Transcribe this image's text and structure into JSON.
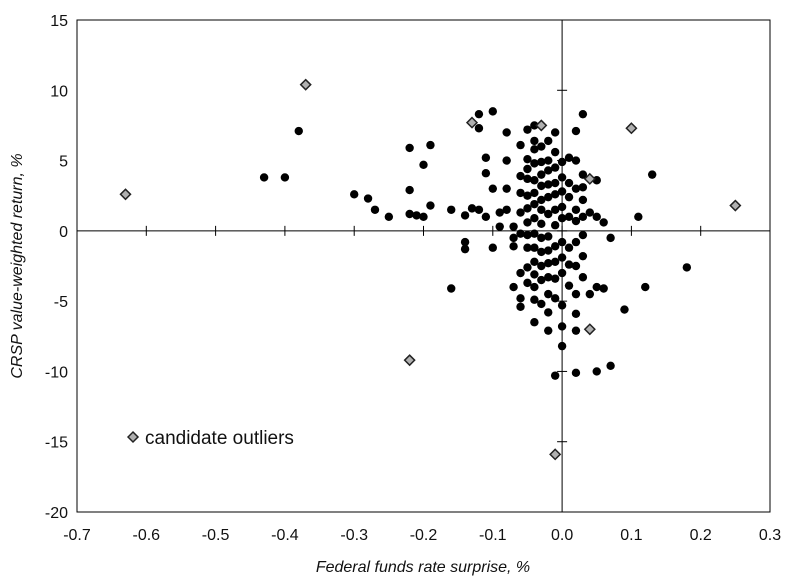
{
  "chart_data": {
    "type": "scatter",
    "xlabel": "Federal funds rate surprise, %",
    "ylabel": "CRSP value-weighted return, %",
    "xlim": [
      -0.7,
      0.3
    ],
    "ylim": [
      -20,
      15
    ],
    "xticks": [
      -0.7,
      -0.6,
      -0.5,
      -0.4,
      -0.3,
      -0.2,
      -0.1,
      0.0,
      0.1,
      0.2,
      0.3
    ],
    "xtick_labels": [
      "-0.7",
      "-0.6",
      "-0.5",
      "-0.4",
      "-0.3",
      "-0.2",
      "-0.1",
      "0.0",
      "0.1",
      "0.2",
      "0.3"
    ],
    "yticks": [
      -20,
      -15,
      -10,
      -5,
      0,
      5,
      10,
      15
    ],
    "ytick_labels": [
      "-20",
      "-15",
      "-10",
      "-5",
      "0",
      "5",
      "10",
      "15"
    ],
    "grid": false,
    "legend_position": "bottom-left",
    "series": [
      {
        "marker": "circle",
        "color": "#000000",
        "points": [
          [
            -0.43,
            3.8
          ],
          [
            -0.4,
            3.8
          ],
          [
            -0.38,
            7.1
          ],
          [
            -0.3,
            2.6
          ],
          [
            -0.28,
            2.3
          ],
          [
            -0.27,
            1.5
          ],
          [
            -0.25,
            1.0
          ],
          [
            -0.22,
            5.9
          ],
          [
            -0.22,
            2.9
          ],
          [
            -0.22,
            1.2
          ],
          [
            -0.21,
            1.1
          ],
          [
            -0.2,
            4.7
          ],
          [
            -0.2,
            1.0
          ],
          [
            -0.19,
            6.1
          ],
          [
            -0.19,
            1.8
          ],
          [
            -0.16,
            1.5
          ],
          [
            -0.16,
            -4.1
          ],
          [
            -0.14,
            -0.8
          ],
          [
            -0.14,
            -1.3
          ],
          [
            -0.14,
            1.1
          ],
          [
            -0.13,
            1.6
          ],
          [
            -0.12,
            8.3
          ],
          [
            -0.12,
            7.3
          ],
          [
            -0.12,
            1.5
          ],
          [
            -0.11,
            5.2
          ],
          [
            -0.11,
            4.1
          ],
          [
            -0.11,
            1.0
          ],
          [
            -0.1,
            8.5
          ],
          [
            -0.1,
            -1.2
          ],
          [
            -0.1,
            3.0
          ],
          [
            -0.09,
            1.3
          ],
          [
            -0.09,
            0.3
          ],
          [
            -0.08,
            7.0
          ],
          [
            -0.08,
            5.0
          ],
          [
            -0.08,
            3.0
          ],
          [
            -0.08,
            1.5
          ],
          [
            -0.07,
            0.3
          ],
          [
            -0.07,
            -0.5
          ],
          [
            -0.07,
            -1.1
          ],
          [
            -0.07,
            -4.0
          ],
          [
            -0.06,
            6.1
          ],
          [
            -0.06,
            3.9
          ],
          [
            -0.06,
            2.7
          ],
          [
            -0.06,
            1.3
          ],
          [
            -0.06,
            -0.2
          ],
          [
            -0.06,
            -3.0
          ],
          [
            -0.06,
            -4.8
          ],
          [
            -0.06,
            -5.4
          ],
          [
            -0.05,
            7.2
          ],
          [
            -0.05,
            5.1
          ],
          [
            -0.05,
            4.4
          ],
          [
            -0.05,
            3.7
          ],
          [
            -0.05,
            2.5
          ],
          [
            -0.05,
            1.6
          ],
          [
            -0.05,
            0.6
          ],
          [
            -0.05,
            -0.3
          ],
          [
            -0.05,
            -1.2
          ],
          [
            -0.05,
            -2.6
          ],
          [
            -0.05,
            -3.7
          ],
          [
            -0.04,
            7.5
          ],
          [
            -0.04,
            6.4
          ],
          [
            -0.04,
            5.8
          ],
          [
            -0.04,
            4.8
          ],
          [
            -0.04,
            3.6
          ],
          [
            -0.04,
            2.7
          ],
          [
            -0.04,
            1.9
          ],
          [
            -0.04,
            0.9
          ],
          [
            -0.04,
            -0.2
          ],
          [
            -0.04,
            -1.2
          ],
          [
            -0.04,
            -2.2
          ],
          [
            -0.04,
            -3.1
          ],
          [
            -0.04,
            -4.0
          ],
          [
            -0.04,
            -4.9
          ],
          [
            -0.04,
            -6.5
          ],
          [
            -0.03,
            6.0
          ],
          [
            -0.03,
            4.9
          ],
          [
            -0.03,
            4.0
          ],
          [
            -0.03,
            3.2
          ],
          [
            -0.03,
            2.2
          ],
          [
            -0.03,
            1.5
          ],
          [
            -0.03,
            0.5
          ],
          [
            -0.03,
            -0.5
          ],
          [
            -0.03,
            -1.5
          ],
          [
            -0.03,
            -2.5
          ],
          [
            -0.03,
            -3.5
          ],
          [
            -0.03,
            -5.2
          ],
          [
            -0.02,
            6.4
          ],
          [
            -0.02,
            5.0
          ],
          [
            -0.02,
            4.3
          ],
          [
            -0.02,
            3.3
          ],
          [
            -0.02,
            2.4
          ],
          [
            -0.02,
            1.2
          ],
          [
            -0.02,
            -0.4
          ],
          [
            -0.02,
            -1.4
          ],
          [
            -0.02,
            -2.3
          ],
          [
            -0.02,
            -3.3
          ],
          [
            -0.02,
            -4.5
          ],
          [
            -0.02,
            -5.8
          ],
          [
            -0.02,
            -7.1
          ],
          [
            -0.01,
            7.0
          ],
          [
            -0.01,
            5.6
          ],
          [
            -0.01,
            4.5
          ],
          [
            -0.01,
            3.4
          ],
          [
            -0.01,
            2.6
          ],
          [
            -0.01,
            1.5
          ],
          [
            -0.01,
            0.4
          ],
          [
            -0.01,
            -1.1
          ],
          [
            -0.01,
            -2.2
          ],
          [
            -0.01,
            -3.4
          ],
          [
            -0.01,
            -4.8
          ],
          [
            -0.01,
            -10.3
          ],
          [
            0.0,
            4.9
          ],
          [
            0.0,
            3.8
          ],
          [
            0.0,
            2.8
          ],
          [
            0.0,
            1.7
          ],
          [
            0.0,
            0.9
          ],
          [
            0.0,
            -0.8
          ],
          [
            0.0,
            -1.9
          ],
          [
            0.0,
            -3.0
          ],
          [
            0.0,
            -5.3
          ],
          [
            0.0,
            -6.8
          ],
          [
            0.0,
            -8.2
          ],
          [
            0.01,
            5.2
          ],
          [
            0.01,
            3.4
          ],
          [
            0.01,
            2.4
          ],
          [
            0.01,
            1.0
          ],
          [
            0.01,
            -1.2
          ],
          [
            0.01,
            -2.4
          ],
          [
            0.01,
            -3.9
          ],
          [
            0.02,
            7.1
          ],
          [
            0.02,
            5.0
          ],
          [
            0.02,
            3.0
          ],
          [
            0.02,
            1.5
          ],
          [
            0.02,
            0.7
          ],
          [
            0.02,
            -0.8
          ],
          [
            0.02,
            -2.5
          ],
          [
            0.02,
            -4.5
          ],
          [
            0.02,
            -5.9
          ],
          [
            0.02,
            -7.1
          ],
          [
            0.02,
            -10.1
          ],
          [
            0.03,
            8.3
          ],
          [
            0.03,
            4.0
          ],
          [
            0.03,
            3.1
          ],
          [
            0.03,
            2.2
          ],
          [
            0.03,
            1.0
          ],
          [
            0.03,
            -0.3
          ],
          [
            0.03,
            -1.8
          ],
          [
            0.03,
            -3.3
          ],
          [
            0.04,
            1.3
          ],
          [
            0.04,
            -4.5
          ],
          [
            0.05,
            3.6
          ],
          [
            0.05,
            1.0
          ],
          [
            0.05,
            -4.0
          ],
          [
            0.05,
            -10.0
          ],
          [
            0.06,
            -4.1
          ],
          [
            0.06,
            0.6
          ],
          [
            0.07,
            -0.5
          ],
          [
            0.07,
            -9.6
          ],
          [
            0.09,
            -5.6
          ],
          [
            0.11,
            1.0
          ],
          [
            0.12,
            -4.0
          ],
          [
            0.13,
            4.0
          ],
          [
            0.18,
            -2.6
          ]
        ]
      },
      {
        "name": "candidate outliers",
        "marker": "diamond",
        "color": "#b0b0b0",
        "points": [
          [
            -0.63,
            2.6
          ],
          [
            -0.37,
            10.4
          ],
          [
            -0.22,
            -9.2
          ],
          [
            -0.13,
            7.7
          ],
          [
            -0.03,
            7.5
          ],
          [
            -0.01,
            -15.9
          ],
          [
            0.04,
            3.7
          ],
          [
            0.04,
            -7.0
          ],
          [
            0.1,
            7.3
          ],
          [
            0.25,
            1.8
          ]
        ]
      }
    ]
  }
}
